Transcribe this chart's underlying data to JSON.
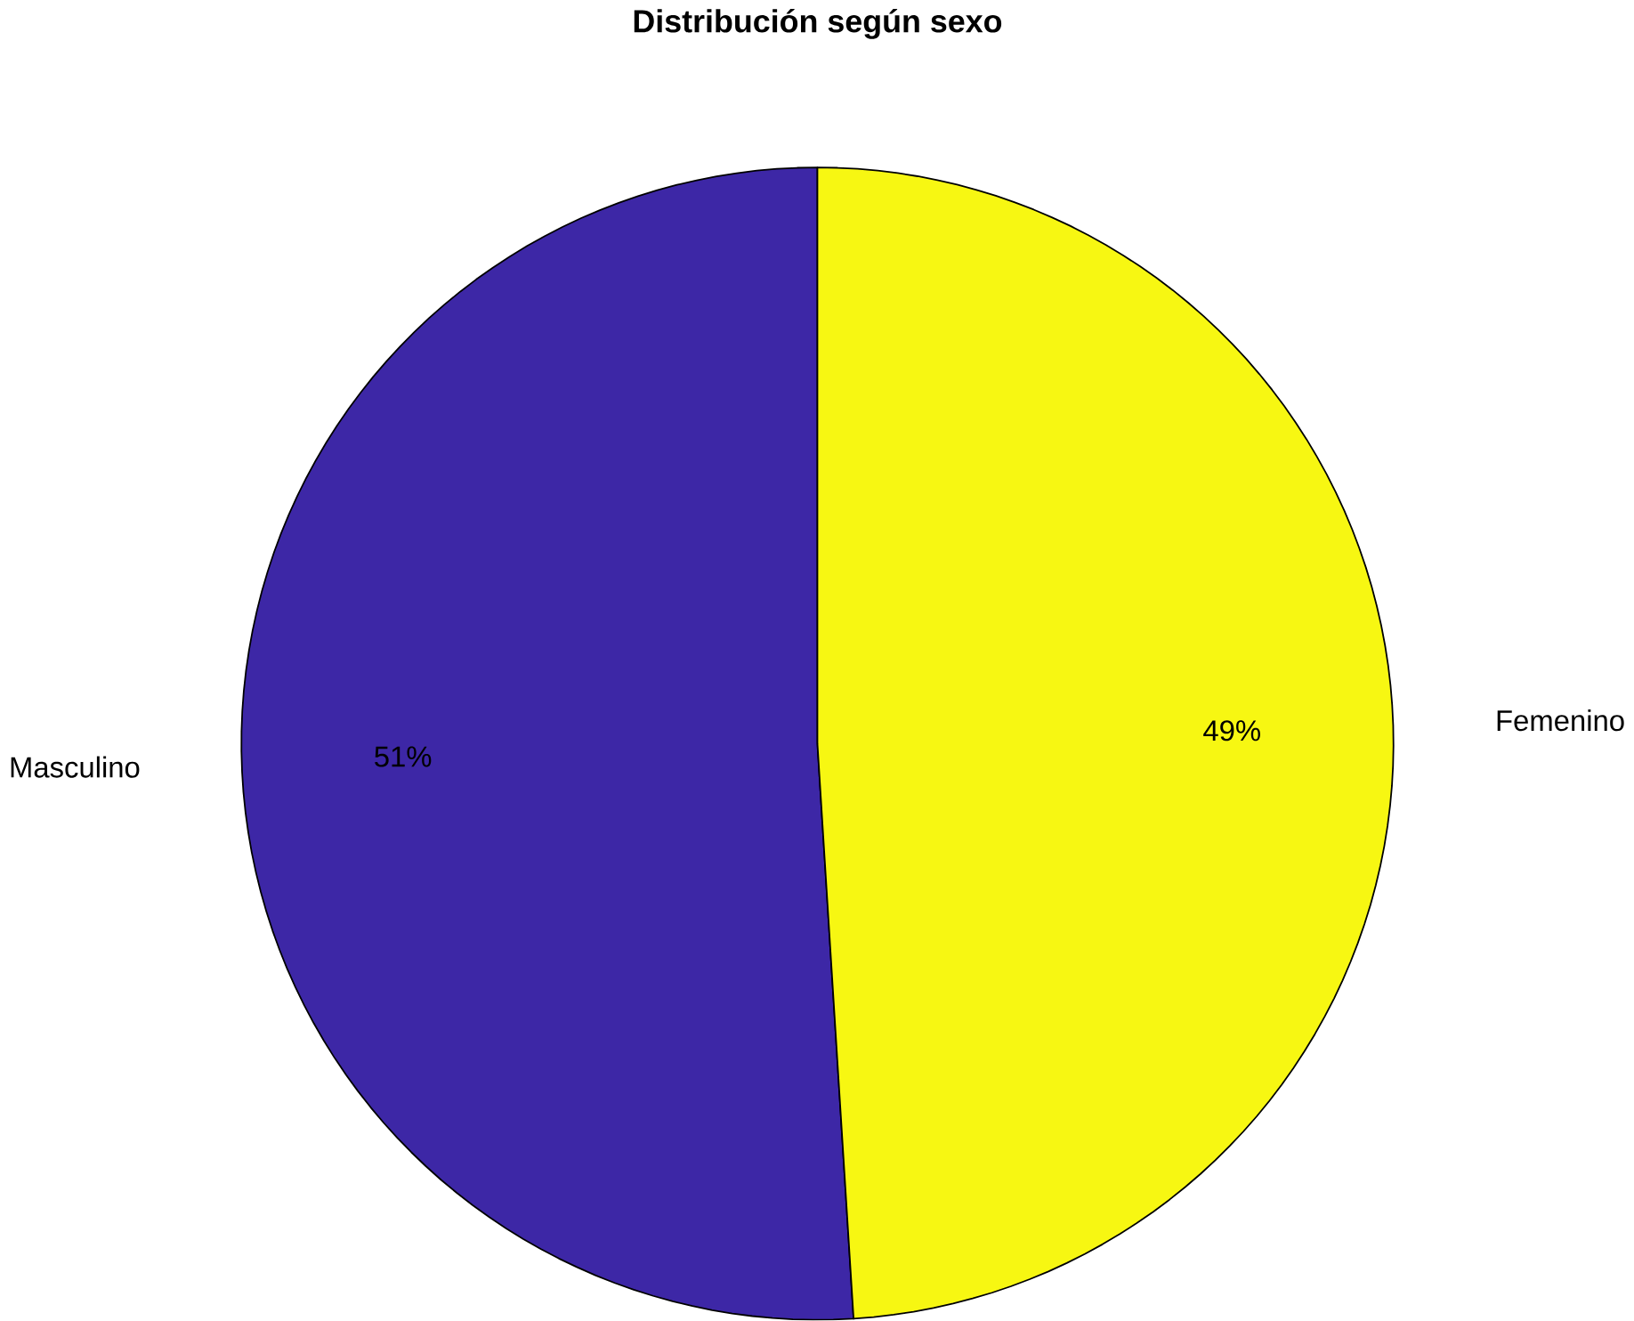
{
  "chart_data": {
    "type": "pie",
    "title": "Distribución según sexo",
    "categories": [
      "Masculino",
      "Femenino"
    ],
    "values": [
      51,
      49
    ],
    "colors": [
      "#3d27a6",
      "#f7f712"
    ],
    "value_labels": [
      "51%",
      "49%"
    ]
  }
}
